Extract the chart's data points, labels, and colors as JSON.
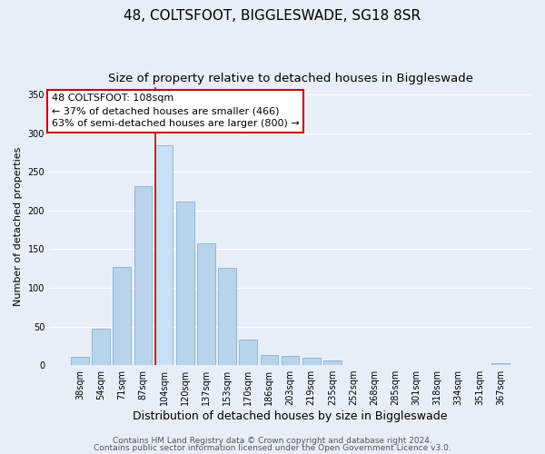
{
  "title": "48, COLTSFOOT, BIGGLESWADE, SG18 8SR",
  "subtitle": "Size of property relative to detached houses in Biggleswade",
  "xlabel": "Distribution of detached houses by size in Biggleswade",
  "ylabel": "Number of detached properties",
  "bar_labels": [
    "38sqm",
    "54sqm",
    "71sqm",
    "87sqm",
    "104sqm",
    "120sqm",
    "137sqm",
    "153sqm",
    "170sqm",
    "186sqm",
    "203sqm",
    "219sqm",
    "235sqm",
    "252sqm",
    "268sqm",
    "285sqm",
    "301sqm",
    "318sqm",
    "334sqm",
    "351sqm",
    "367sqm"
  ],
  "bar_values": [
    11,
    47,
    127,
    231,
    284,
    211,
    157,
    126,
    33,
    13,
    12,
    10,
    6,
    0,
    0,
    0,
    0,
    0,
    0,
    0,
    2
  ],
  "bar_color_normal": "#b8d4ea",
  "bar_edge_color": "#8ab0d0",
  "highlight_bar_color": "#c8dff5",
  "highlight_index": 4,
  "vline_color": "#cc0000",
  "ylim": [
    0,
    360
  ],
  "yticks": [
    0,
    50,
    100,
    150,
    200,
    250,
    300,
    350
  ],
  "annotation_title": "48 COLTSFOOT: 108sqm",
  "annotation_line1": "← 37% of detached houses are smaller (466)",
  "annotation_line2": "63% of semi-detached houses are larger (800) →",
  "annotation_box_facecolor": "#ffffff",
  "annotation_box_edgecolor": "#cc0000",
  "footer1": "Contains HM Land Registry data © Crown copyright and database right 2024.",
  "footer2": "Contains public sector information licensed under the Open Government Licence v3.0.",
  "background_color": "#e8eef8",
  "plot_background": "#e8eef8",
  "grid_color": "#ffffff",
  "title_fontsize": 11,
  "subtitle_fontsize": 9.5,
  "xlabel_fontsize": 9,
  "ylabel_fontsize": 8,
  "tick_fontsize": 7,
  "annotation_fontsize": 8,
  "footer_fontsize": 6.5
}
